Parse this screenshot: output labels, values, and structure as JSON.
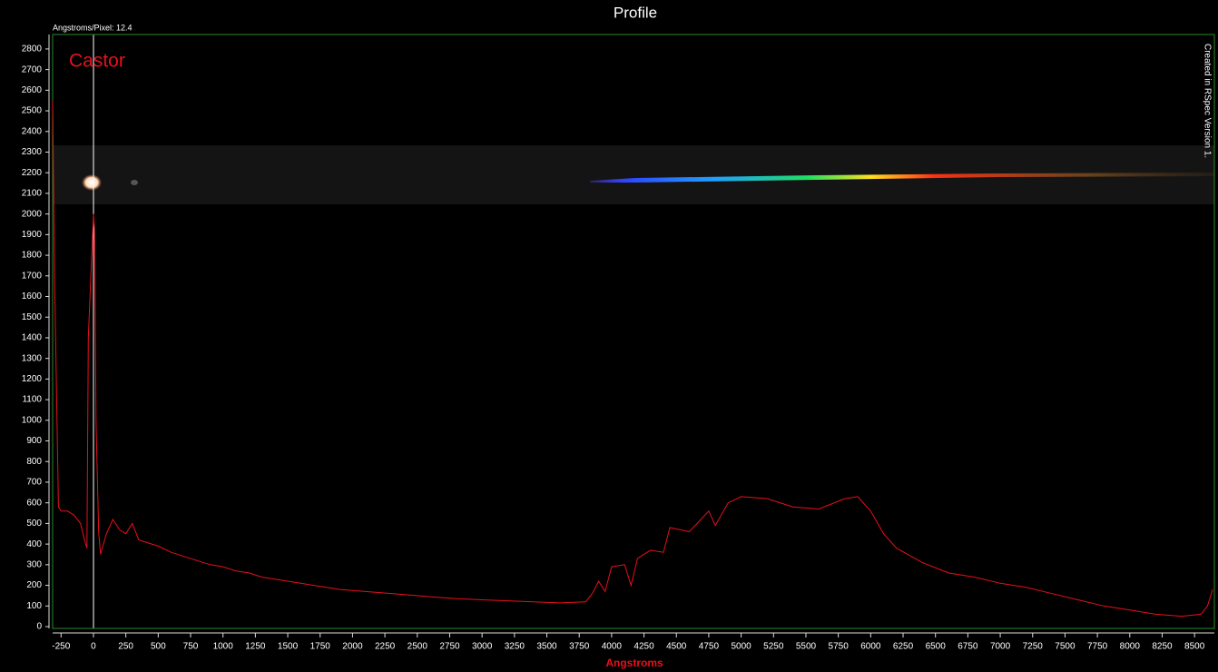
{
  "chart_data": {
    "type": "line",
    "title": "Profile",
    "subtitle": "Angstroms/Pixel: 12.4",
    "annotation": "Castor",
    "side_note": "Created in RSpec Version 1.",
    "x_label": "Angstroms",
    "x": [
      -315,
      -300,
      -280,
      -270,
      -250,
      -200,
      -150,
      -100,
      -70,
      -50,
      -40,
      -20,
      0,
      10,
      20,
      40,
      55,
      100,
      150,
      200,
      250,
      300,
      350,
      400,
      500,
      600,
      700,
      800,
      900,
      1000,
      1100,
      1200,
      1300,
      1400,
      1500,
      1600,
      1700,
      1800,
      1900,
      2000,
      2200,
      2400,
      2600,
      2800,
      3000,
      3200,
      3400,
      3600,
      3800,
      3850,
      3900,
      3950,
      4000,
      4100,
      4150,
      4200,
      4300,
      4400,
      4450,
      4600,
      4750,
      4800,
      4900,
      5000,
      5200,
      5400,
      5600,
      5800,
      5900,
      6000,
      6100,
      6200,
      6400,
      6600,
      6800,
      7000,
      7200,
      7400,
      7600,
      7800,
      8000,
      8200,
      8400,
      8550,
      8600,
      8640
    ],
    "series": [
      {
        "name": "Castor",
        "color": "#e8101a",
        "values": [
          2550,
          1700,
          950,
          580,
          560,
          560,
          540,
          500,
          420,
          380,
          1400,
          1700,
          2000,
          1900,
          1000,
          460,
          350,
          450,
          520,
          470,
          450,
          500,
          420,
          410,
          390,
          360,
          340,
          320,
          300,
          290,
          270,
          260,
          240,
          230,
          220,
          210,
          200,
          190,
          180,
          175,
          165,
          155,
          145,
          135,
          130,
          125,
          120,
          115,
          120,
          160,
          220,
          170,
          290,
          300,
          200,
          330,
          370,
          360,
          480,
          460,
          560,
          490,
          600,
          630,
          620,
          580,
          570,
          620,
          630,
          560,
          450,
          380,
          310,
          260,
          240,
          210,
          190,
          160,
          130,
          100,
          80,
          60,
          50,
          60,
          100,
          180
        ]
      }
    ],
    "xlim": [
      -315,
      8653
    ],
    "ylim": [
      0,
      2870
    ],
    "xticks": [
      -250,
      0,
      250,
      500,
      750,
      1000,
      1250,
      1500,
      1750,
      2000,
      2250,
      2500,
      2750,
      3000,
      3250,
      3500,
      3750,
      4000,
      4250,
      4500,
      4750,
      5000,
      5250,
      5500,
      5750,
      6000,
      6250,
      6500,
      6750,
      7000,
      7250,
      7500,
      7750,
      8000,
      8250,
      8500
    ],
    "yticks": [
      0,
      100,
      200,
      300,
      400,
      500,
      600,
      700,
      800,
      900,
      1000,
      1100,
      1200,
      1300,
      1400,
      1500,
      1600,
      1700,
      1800,
      1900,
      2000,
      2100,
      2200,
      2300,
      2400,
      2500,
      2600,
      2700,
      2800
    ]
  }
}
